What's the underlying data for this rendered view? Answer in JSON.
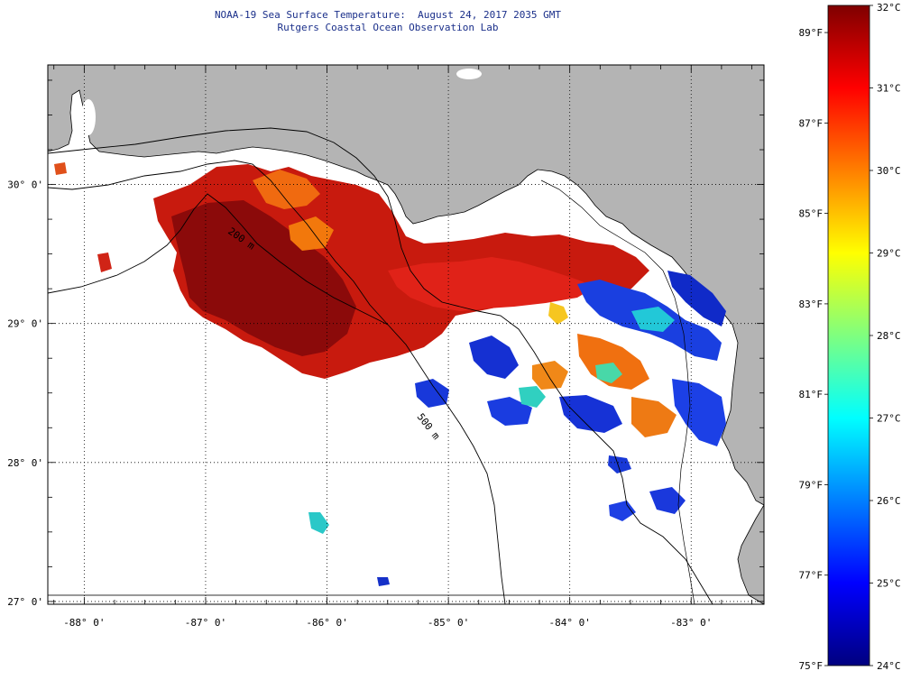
{
  "title": {
    "line1": "NOAA-19 Sea Surface Temperature:  August 24, 2017 2035 GMT",
    "line2": "Rutgers Coastal Ocean Observation Lab"
  },
  "map": {
    "lon_range": [
      -88.3,
      -82.4
    ],
    "lat_range": [
      26.98,
      30.86
    ],
    "lon_labels": [
      {
        "lon": -88,
        "text": "-88° 0'"
      },
      {
        "lon": -87,
        "text": "-87° 0'"
      },
      {
        "lon": -86,
        "text": "-86° 0'"
      },
      {
        "lon": -85,
        "text": "-85° 0'"
      },
      {
        "lon": -84,
        "text": "-84° 0'"
      },
      {
        "lon": -83,
        "text": "-83° 0'"
      }
    ],
    "lat_labels": [
      {
        "lat": 30,
        "text": "30° 0'"
      },
      {
        "lat": 29,
        "text": "29° 0'"
      },
      {
        "lat": 28,
        "text": "28° 0'"
      },
      {
        "lat": 27,
        "text": "27° 0'"
      }
    ],
    "colors": {
      "land": "#b4b4b4",
      "no_data": "#ffffff",
      "grid": "#000000"
    },
    "contour_labels": [
      "200 m",
      "500 m"
    ]
  },
  "colorbar": {
    "celsius_labels": [
      {
        "value": 32,
        "text": "32°C"
      },
      {
        "value": 31,
        "text": "31°C"
      },
      {
        "value": 30,
        "text": "30°C"
      },
      {
        "value": 29,
        "text": "29°C"
      },
      {
        "value": 28,
        "text": "28°C"
      },
      {
        "value": 27,
        "text": "27°C"
      },
      {
        "value": 26,
        "text": "26°C"
      },
      {
        "value": 25,
        "text": "25°C"
      },
      {
        "value": 24,
        "text": "24°C"
      }
    ],
    "fahrenheit_labels": [
      {
        "value": 89,
        "text": "89°F"
      },
      {
        "value": 87,
        "text": "87°F"
      },
      {
        "value": 85,
        "text": "85°F"
      },
      {
        "value": 83,
        "text": "83°F"
      },
      {
        "value": 81,
        "text": "81°F"
      },
      {
        "value": 79,
        "text": "79°F"
      },
      {
        "value": 77,
        "text": "77°F"
      },
      {
        "value": 75,
        "text": "75°F"
      }
    ],
    "range_c": [
      24,
      32
    ],
    "range_f": [
      75,
      89.6
    ],
    "stops": [
      "#00007f",
      "#0000ff",
      "#007fff",
      "#00ffff",
      "#7fff7f",
      "#ffff00",
      "#ff7f00",
      "#ff0000",
      "#7f0000"
    ]
  }
}
